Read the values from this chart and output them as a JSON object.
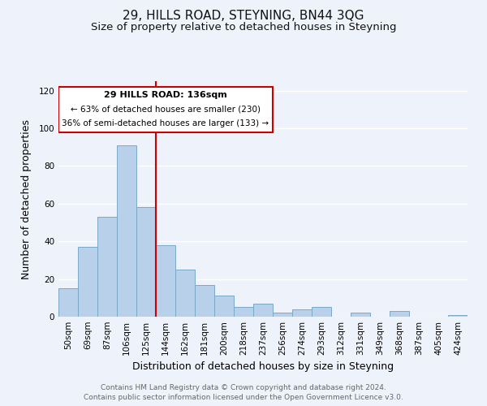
{
  "title": "29, HILLS ROAD, STEYNING, BN44 3QG",
  "subtitle": "Size of property relative to detached houses in Steyning",
  "xlabel": "Distribution of detached houses by size in Steyning",
  "ylabel": "Number of detached properties",
  "bar_labels": [
    "50sqm",
    "69sqm",
    "87sqm",
    "106sqm",
    "125sqm",
    "144sqm",
    "162sqm",
    "181sqm",
    "200sqm",
    "218sqm",
    "237sqm",
    "256sqm",
    "274sqm",
    "293sqm",
    "312sqm",
    "331sqm",
    "349sqm",
    "368sqm",
    "387sqm",
    "405sqm",
    "424sqm"
  ],
  "bar_values": [
    15,
    37,
    53,
    91,
    58,
    38,
    25,
    17,
    11,
    5,
    7,
    2,
    4,
    5,
    0,
    2,
    0,
    3,
    0,
    0,
    1
  ],
  "bar_color": "#b8d0ea",
  "bar_edge_color": "#7aaac8",
  "background_color": "#eef2fb",
  "grid_color": "#ffffff",
  "vline_color": "#cc0000",
  "vline_bar_index": 5,
  "annotation_title": "29 HILLS ROAD: 136sqm",
  "annotation_line1": "← 63% of detached houses are smaller (230)",
  "annotation_line2": "36% of semi-detached houses are larger (133) →",
  "annotation_box_color": "#ffffff",
  "annotation_box_edge": "#cc0000",
  "ylim": [
    0,
    125
  ],
  "yticks": [
    0,
    20,
    40,
    60,
    80,
    100,
    120
  ],
  "footer_line1": "Contains HM Land Registry data © Crown copyright and database right 2024.",
  "footer_line2": "Contains public sector information licensed under the Open Government Licence v3.0.",
  "title_fontsize": 11,
  "subtitle_fontsize": 9.5,
  "axis_label_fontsize": 9,
  "tick_fontsize": 7.5,
  "footer_fontsize": 6.5
}
